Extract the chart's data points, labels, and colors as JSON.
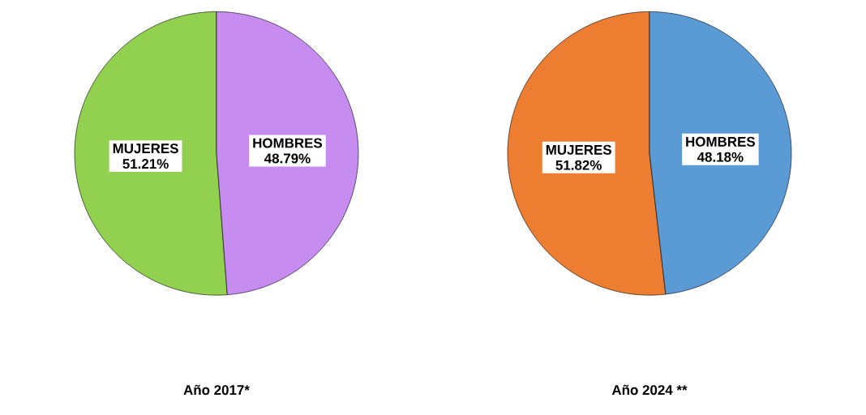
{
  "chart_data": [
    {
      "type": "pie",
      "title": "Año 2017*",
      "categories": [
        "MUJERES",
        "HOMBRES"
      ],
      "values": [
        51.21,
        48.79
      ],
      "value_labels": [
        "51.21%",
        "48.79%"
      ],
      "colors": [
        "#92d050",
        "#c78cf0"
      ]
    },
    {
      "type": "pie",
      "title": "Año 2024 **",
      "categories": [
        "MUJERES",
        "HOMBRES"
      ],
      "values": [
        51.82,
        48.18
      ],
      "value_labels": [
        "51.82%",
        "48.18%"
      ],
      "colors": [
        "#ed7d31",
        "#5b9bd5"
      ]
    }
  ]
}
